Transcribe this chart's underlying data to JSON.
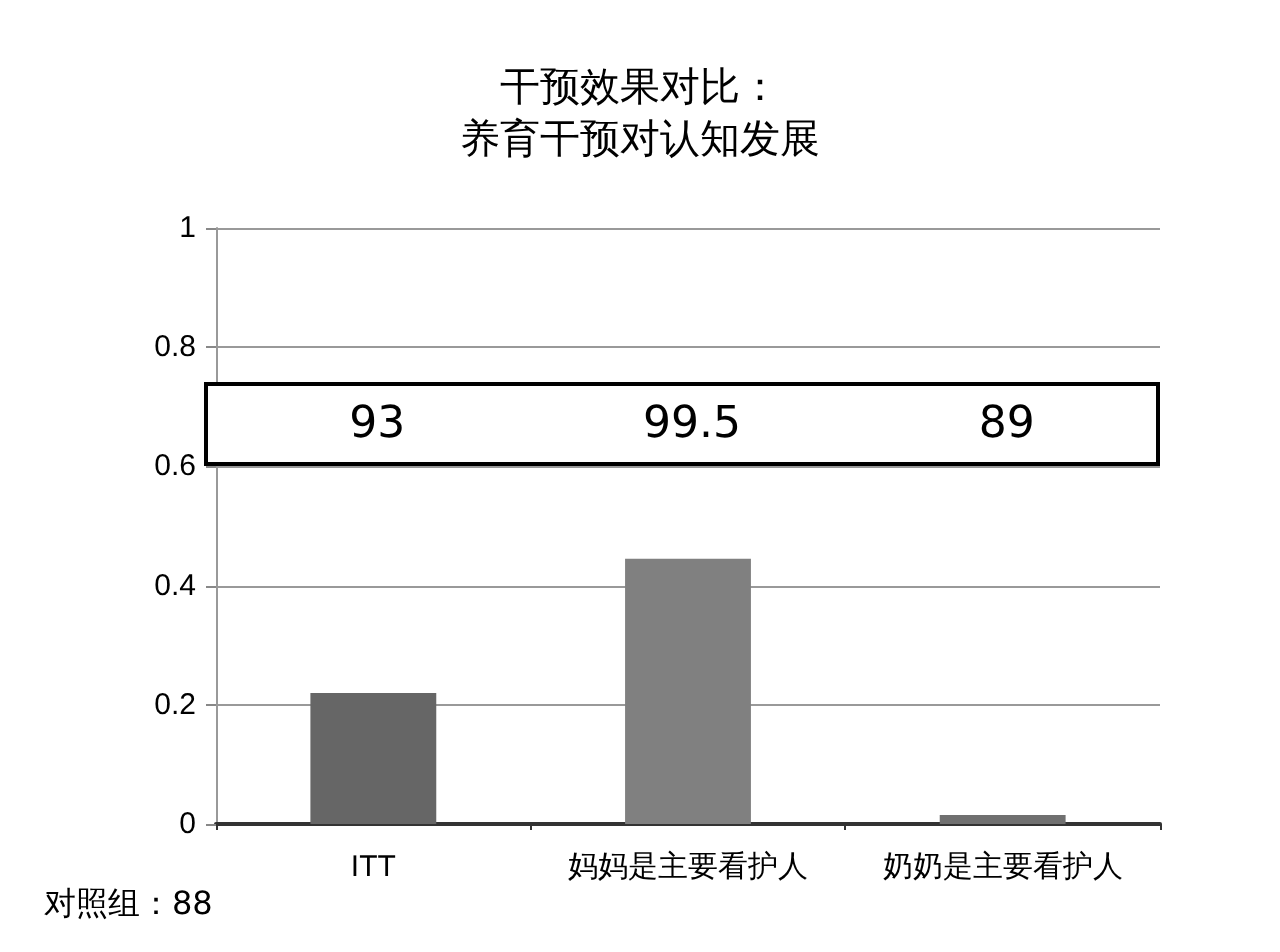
{
  "chart_data": {
    "type": "bar",
    "title": "干预效果对比：",
    "subtitle": "养育干预对认知发展",
    "categories": [
      "ITT",
      "妈妈是主要看护人",
      "奶奶是主要看护人"
    ],
    "values": [
      0.22,
      0.445,
      0.015
    ],
    "colors": [
      "#666666",
      "#808080",
      "#707070"
    ],
    "ylim": [
      0,
      1
    ],
    "yticks": [
      0,
      0.2,
      0.4,
      0.6,
      0.8,
      1
    ],
    "grid": "y",
    "annotations": [
      "93",
      "99.5",
      "89",
      "对照组：88"
    ]
  }
}
